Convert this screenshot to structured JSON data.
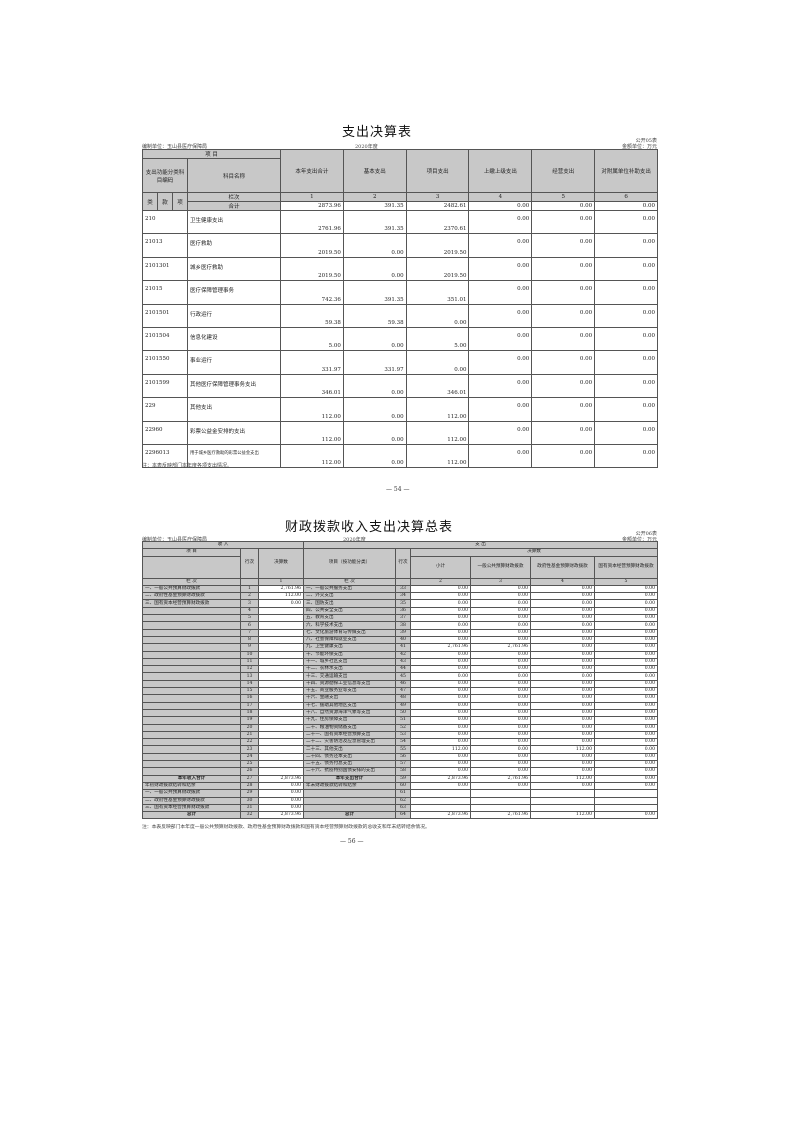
{
  "page1": {
    "title": "支出决算表",
    "unit_org": "编制单位：玉山县医疗保障局",
    "year": "2020年度",
    "table_no": "公开05表",
    "unit": "金额单位：万元",
    "headers": {
      "item": "项 目",
      "code": "支出功能分类科目编码",
      "name": "科目名称",
      "cols": [
        "本年支出合计",
        "基本支出",
        "项目支出",
        "上缴上级支出",
        "经营支出",
        "对附属单位补助支出"
      ],
      "lei": "类",
      "kuan": "款",
      "xiang": "项",
      "lanci": "栏次",
      "col_nums": [
        "1",
        "2",
        "3",
        "4",
        "5",
        "6"
      ],
      "total": "合计"
    },
    "total_values": [
      "2873.96",
      "391.35",
      "2482.61",
      "0.00",
      "0.00",
      "0.00"
    ],
    "rows": [
      {
        "code": "210",
        "name": "卫生健康支出",
        "v": [
          "2761.96",
          "391.35",
          "2370.61",
          "0.00",
          "0.00",
          "0.00"
        ]
      },
      {
        "code": "21013",
        "name": "医疗救助",
        "v": [
          "2019.50",
          "0.00",
          "2019.50",
          "0.00",
          "0.00",
          "0.00"
        ]
      },
      {
        "code": "2101301",
        "name": "城乡医疗救助",
        "v": [
          "2019.50",
          "0.00",
          "2019.50",
          "0.00",
          "0.00",
          "0.00"
        ]
      },
      {
        "code": "21015",
        "name": "医疗保障管理事务",
        "v": [
          "742.36",
          "391.35",
          "351.01",
          "0.00",
          "0.00",
          "0.00"
        ]
      },
      {
        "code": "2101501",
        "name": "行政运行",
        "v": [
          "59.38",
          "59.38",
          "0.00",
          "0.00",
          "0.00",
          "0.00"
        ]
      },
      {
        "code": "2101504",
        "name": "信息化建设",
        "v": [
          "5.00",
          "0.00",
          "5.00",
          "0.00",
          "0.00",
          "0.00"
        ]
      },
      {
        "code": "2101550",
        "name": "事业运行",
        "v": [
          "331.97",
          "331.97",
          "0.00",
          "0.00",
          "0.00",
          "0.00"
        ]
      },
      {
        "code": "2101599",
        "name": "其他医疗保障管理事务支出",
        "v": [
          "346.01",
          "0.00",
          "346.01",
          "0.00",
          "0.00",
          "0.00"
        ]
      },
      {
        "code": "229",
        "name": "其他支出",
        "v": [
          "112.00",
          "0.00",
          "112.00",
          "0.00",
          "0.00",
          "0.00"
        ]
      },
      {
        "code": "22960",
        "name": "彩票公益金安排的支出",
        "v": [
          "112.00",
          "0.00",
          "112.00",
          "0.00",
          "0.00",
          "0.00"
        ]
      },
      {
        "code": "2296013",
        "name": "用于城乡医疗救助的彩票公益金支出",
        "v": [
          "112.00",
          "0.00",
          "112.00",
          "0.00",
          "0.00",
          "0.00"
        ]
      }
    ],
    "note": "注：本表反映部门本年度各项支出情况。",
    "page": "— 54 —"
  },
  "page2": {
    "title": "财政拨款收入支出决算总表",
    "unit_org": "编制单位：玉山县医疗保障局",
    "year": "2020年度",
    "table_no": "公开06表",
    "unit": "金额单位：万元",
    "headers": {
      "income": "收 入",
      "expense": "支 出",
      "item": "项 目",
      "line": "行次",
      "final": "决算数",
      "exp_item": "项目（按功能分类）",
      "budget": "决算数",
      "cols": [
        "小计",
        "一般公共预算财政拨款",
        "政府性基金预算财政拨款",
        "国有资本经营预算财政拨款"
      ],
      "lanci": "栏 次",
      "n1": "1",
      "ncols": [
        "2",
        "3",
        "4",
        "5"
      ]
    },
    "income_rows": [
      {
        "name": "一、一般公共预算财政拨款",
        "line": "1",
        "v": "2,761.96"
      },
      {
        "name": "二、政府性基金预算财政拨款",
        "line": "2",
        "v": "112.00"
      },
      {
        "name": "三、国有资本经营预算财政拨款",
        "line": "3",
        "v": "0.00"
      }
    ],
    "expense_rows": [
      [
        "一、一般公共服务支出",
        "33",
        "0.00",
        "0.00",
        "0.00",
        "0.00"
      ],
      [
        "二、外交支出",
        "34",
        "0.00",
        "0.00",
        "0.00",
        "0.00"
      ],
      [
        "三、国防支出",
        "35",
        "0.00",
        "0.00",
        "0.00",
        "0.00"
      ],
      [
        "四、公共安全支出",
        "36",
        "0.00",
        "0.00",
        "0.00",
        "0.00"
      ],
      [
        "五、教育支出",
        "37",
        "0.00",
        "0.00",
        "0.00",
        "0.00"
      ],
      [
        "六、科学技术支出",
        "38",
        "0.00",
        "0.00",
        "0.00",
        "0.00"
      ],
      [
        "七、文化旅游体育与传媒支出",
        "39",
        "0.00",
        "0.00",
        "0.00",
        "0.00"
      ],
      [
        "八、社会保障和就业支出",
        "40",
        "0.00",
        "0.00",
        "0.00",
        "0.00"
      ],
      [
        "九、卫生健康支出",
        "41",
        "2,761.96",
        "2,761.96",
        "0.00",
        "0.00"
      ],
      [
        "十、节能环保支出",
        "42",
        "0.00",
        "0.00",
        "0.00",
        "0.00"
      ],
      [
        "十一、城乡社区支出",
        "43",
        "0.00",
        "0.00",
        "0.00",
        "0.00"
      ],
      [
        "十二、农林水支出",
        "44",
        "0.00",
        "0.00",
        "0.00",
        "0.00"
      ],
      [
        "十三、交通运输支出",
        "45",
        "0.00",
        "0.00",
        "0.00",
        "0.00"
      ],
      [
        "十四、资源勘探工业信息等支出",
        "46",
        "0.00",
        "0.00",
        "0.00",
        "0.00"
      ],
      [
        "十五、商业服务业等支出",
        "47",
        "0.00",
        "0.00",
        "0.00",
        "0.00"
      ],
      [
        "十六、金融支出",
        "48",
        "0.00",
        "0.00",
        "0.00",
        "0.00"
      ],
      [
        "十七、援助其他地区支出",
        "49",
        "0.00",
        "0.00",
        "0.00",
        "0.00"
      ],
      [
        "十八、自然资源海洋气象等支出",
        "50",
        "0.00",
        "0.00",
        "0.00",
        "0.00"
      ],
      [
        "十九、住房保障支出",
        "51",
        "0.00",
        "0.00",
        "0.00",
        "0.00"
      ],
      [
        "二十、粮油物资储备支出",
        "52",
        "0.00",
        "0.00",
        "0.00",
        "0.00"
      ],
      [
        "二十一、国有资本经营预算支出",
        "53",
        "0.00",
        "0.00",
        "0.00",
        "0.00"
      ],
      [
        "二十二、灾害防治及应急管理支出",
        "54",
        "0.00",
        "0.00",
        "0.00",
        "0.00"
      ],
      [
        "二十三、其他支出",
        "55",
        "112.00",
        "0.00",
        "112.00",
        "0.00"
      ],
      [
        "二十四、债务还本支出",
        "56",
        "0.00",
        "0.00",
        "0.00",
        "0.00"
      ],
      [
        "二十五、债务付息支出",
        "57",
        "0.00",
        "0.00",
        "0.00",
        "0.00"
      ],
      [
        "二十六、抗疫特别国债安排的支出",
        "58",
        "0.00",
        "0.00",
        "0.00",
        "0.00"
      ]
    ],
    "bottom_rows": [
      {
        "iname": "本年收入合计",
        "iline": "27",
        "iv": "2,873.96",
        "ename": "本年支出合计",
        "eline": "59",
        "ev": [
          "2,873.96",
          "2,761.96",
          "112.00",
          "0.00"
        ],
        "bold": true
      },
      {
        "iname": "年初财政拨款结转和结余",
        "iline": "28",
        "iv": "0.00",
        "ename": "年末财政拨款结转和结余",
        "eline": "60",
        "ev": [
          "0.00",
          "0.00",
          "0.00",
          "0.00"
        ]
      },
      {
        "iname": "一、一般公共预算财政拨款",
        "iline": "29",
        "iv": "0.00",
        "ename": "",
        "eline": "61",
        "ev": [
          "",
          "",
          "",
          ""
        ]
      },
      {
        "iname": "二、政府性基金预算财政拨款",
        "iline": "30",
        "iv": "0.00",
        "ename": "",
        "eline": "62",
        "ev": [
          "",
          "",
          "",
          ""
        ]
      },
      {
        "iname": "三、国有资本经营预算财政拨款",
        "iline": "31",
        "iv": "0.00",
        "ename": "",
        "eline": "63",
        "ev": [
          "",
          "",
          "",
          ""
        ]
      },
      {
        "iname": "总计",
        "iline": "32",
        "iv": "2,873.96",
        "ename": "总计",
        "eline": "64",
        "ev": [
          "2,873.96",
          "2,761.96",
          "112.00",
          "0.00"
        ],
        "bold": true
      }
    ],
    "note": "注：本表反映部门本年度一般公共预算财政拨款、政府性基金预算财政拨款和国有资本经营预算财政拨款的总收支和年末结转结余情况。",
    "page": "— 56 —"
  }
}
